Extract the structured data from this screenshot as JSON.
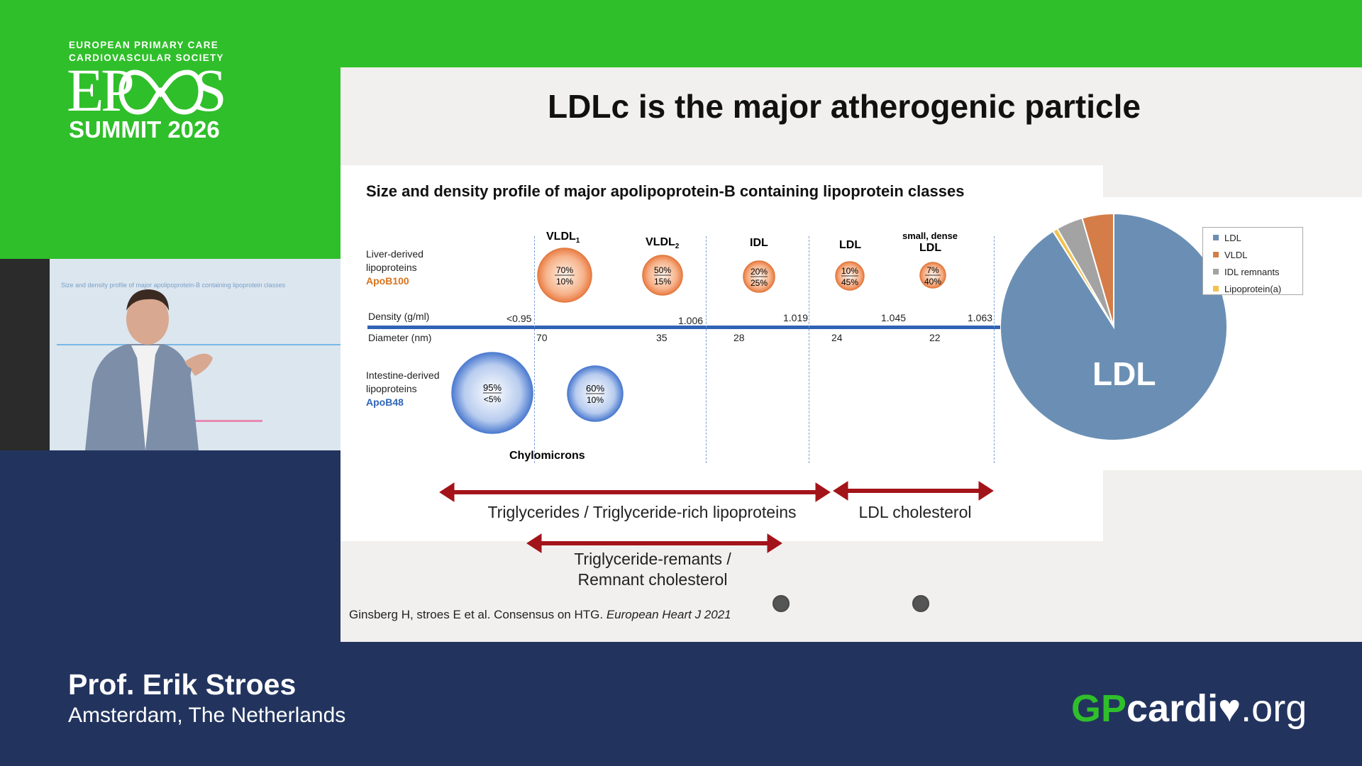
{
  "branding": {
    "org_line1": "EUROPEAN PRIMARY CARE",
    "org_line2": "CARDIOVASCULAR SOCIETY",
    "logo_text": "EPCCS",
    "summit": "SUMMIT 2026",
    "site_gp": "GP",
    "site_cardio": "cardi",
    "site_tld": ".org",
    "colors": {
      "green": "#2fbf2a",
      "navy": "#22345e"
    }
  },
  "speaker": {
    "name": "Prof. Erik Stroes",
    "location": "Amsterdam, The Netherlands"
  },
  "video_thumb": {
    "slide_text": "Size and density profile of major apolipoprotein-B containing lipoprotein classes"
  },
  "slide": {
    "title": "LDLc is the major atherogenic particle",
    "subtitle": "Size and density profile of major apolipoprotein-B containing lipoprotein classes",
    "liver_label": [
      "Liver-derived",
      "lipoproteins",
      "ApoB100"
    ],
    "intestine_label": [
      "Intestine-derived",
      "lipoproteins",
      "ApoB48"
    ],
    "density_label": "Density (g/ml)",
    "diameter_label": "Diameter (nm)",
    "density_ticks": [
      "<0.95",
      "1.006",
      "1.019",
      "1.045",
      "1.063"
    ],
    "diameter_ticks": [
      "70",
      "35",
      "28",
      "24",
      "22"
    ],
    "classes": [
      {
        "name": "VLDL",
        "sub": "1",
        "top": "70%",
        "bottom": "10%"
      },
      {
        "name": "VLDL",
        "sub": "2",
        "top": "50%",
        "bottom": "15%"
      },
      {
        "name": "IDL",
        "sub": "",
        "top": "20%",
        "bottom": "25%"
      },
      {
        "name": "LDL",
        "sub": "",
        "top": "10%",
        "bottom": "45%"
      },
      {
        "name": "small, dense",
        "name2": "LDL",
        "top": "7%",
        "bottom": "40%"
      }
    ],
    "intestine_particles": [
      {
        "top": "95%",
        "bottom": "<5%"
      },
      {
        "top": "60%",
        "bottom": "10%"
      }
    ],
    "chylo_label": "Chylomicrons",
    "arrows": {
      "tg": "Triglycerides / Triglyceride-rich lipoproteins",
      "ldl": "LDL cholesterol",
      "remnant_line1": "Triglyceride-remants /",
      "remnant_line2": "Remnant cholesterol"
    },
    "citation_plain": "Ginsberg H, stroes E et al. Consensus on HTG. ",
    "citation_italic": "European Heart J 2021"
  },
  "chart_data": {
    "type": "pie",
    "title": "",
    "slice_label": "LDL",
    "categories": [
      "LDL",
      "VLDL",
      "IDL remnants",
      "Lipoprotein(a)"
    ],
    "values": [
      91,
      4.5,
      3.8,
      0.7
    ],
    "colors": [
      "#6b8fb4",
      "#d47d49",
      "#a3a3a3",
      "#f2c14e"
    ],
    "legend_position": "right"
  }
}
